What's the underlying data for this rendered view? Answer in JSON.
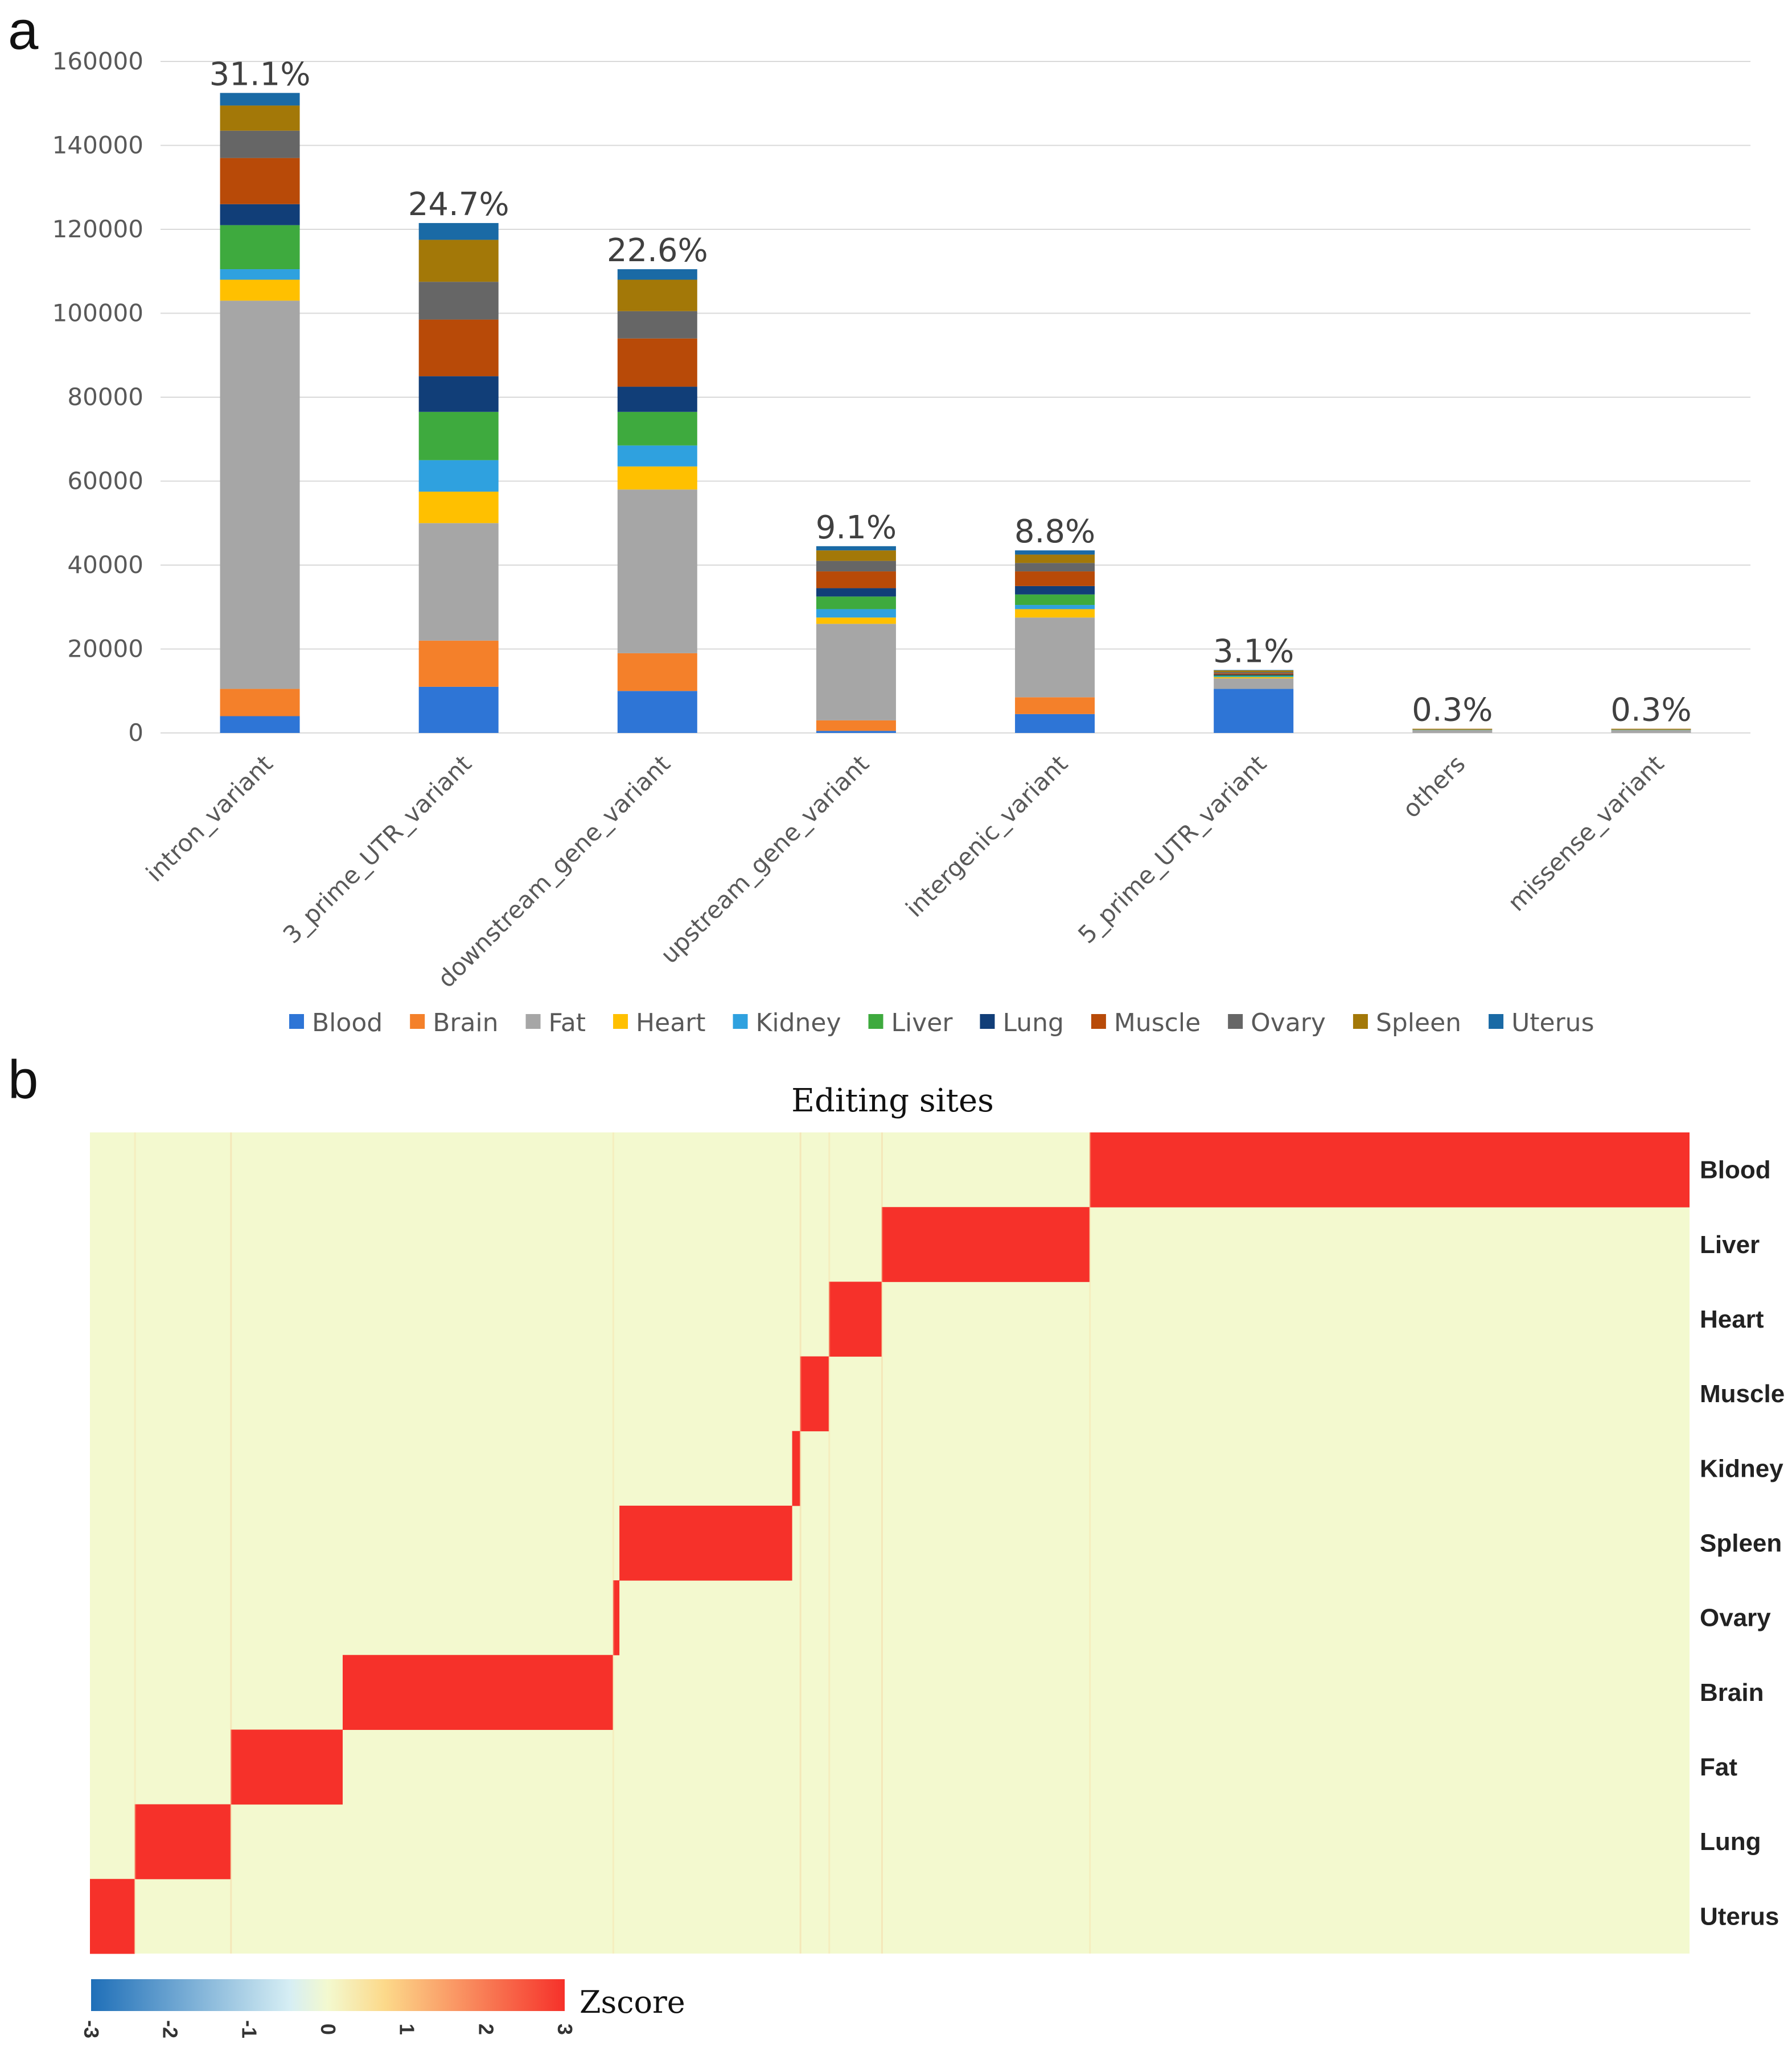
{
  "panels": {
    "a": "a",
    "b": "b"
  },
  "chart_data": [
    {
      "type": "bar",
      "stacked": true,
      "title": "",
      "xlabel": "",
      "ylabel": "",
      "ylim": [
        0,
        160000
      ],
      "y_ticks": [
        "0",
        "20000",
        "40000",
        "60000",
        "80000",
        "100000",
        "120000",
        "140000",
        "160000"
      ],
      "grid": true,
      "legend_position": "bottom",
      "categories": [
        "intron_variant",
        "3_prime_UTR_variant",
        "downstream_gene_variant",
        "upstream_gene_variant",
        "intergenic_variant",
        "5_prime_UTR_variant",
        "others",
        "missense_variant"
      ],
      "percent_labels": [
        "31.1%",
        "24.7%",
        "22.6%",
        "9.1%",
        "8.8%",
        "3.1%",
        "0.3%",
        "0.3%"
      ],
      "series": [
        {
          "name": "Blood",
          "color": "#2E75D6",
          "values": [
            4000,
            11000,
            10000,
            500,
            4500,
            10500,
            0,
            0
          ]
        },
        {
          "name": "Brain",
          "color": "#F4802A",
          "values": [
            6500,
            11000,
            9000,
            2500,
            4000,
            0,
            0,
            0
          ]
        },
        {
          "name": "Fat",
          "color": "#A6A6A6",
          "values": [
            92500,
            28000,
            39000,
            23000,
            19000,
            2500,
            700,
            700
          ]
        },
        {
          "name": "Heart",
          "color": "#FFC000",
          "values": [
            5000,
            7500,
            5500,
            1500,
            2000,
            300,
            0,
            0
          ]
        },
        {
          "name": "Kidney",
          "color": "#2FA1DF",
          "values": [
            2500,
            7500,
            5000,
            2000,
            1000,
            200,
            0,
            0
          ]
        },
        {
          "name": "Liver",
          "color": "#3EAA3E",
          "values": [
            10500,
            11500,
            8000,
            3000,
            2500,
            200,
            100,
            100
          ]
        },
        {
          "name": "Lung",
          "color": "#113E78",
          "values": [
            5000,
            8500,
            6000,
            2000,
            2000,
            200,
            0,
            0
          ]
        },
        {
          "name": "Muscle",
          "color": "#B84A08",
          "values": [
            11000,
            13500,
            11500,
            4000,
            3500,
            300,
            100,
            100
          ]
        },
        {
          "name": "Ovary",
          "color": "#666666",
          "values": [
            6500,
            9000,
            6500,
            2500,
            2000,
            300,
            0,
            0
          ]
        },
        {
          "name": "Spleen",
          "color": "#A37808",
          "values": [
            6000,
            10000,
            7500,
            2500,
            2000,
            400,
            100,
            100
          ]
        },
        {
          "name": "Uterus",
          "color": "#1A6AA5",
          "values": [
            3000,
            4000,
            2500,
            1000,
            1000,
            100,
            0,
            0
          ]
        }
      ]
    },
    {
      "type": "heatmap",
      "title": "Editing sites",
      "rows": [
        "Blood",
        "Liver",
        "Heart",
        "Muscle",
        "Kidney",
        "Spleen",
        "Ovary",
        "Brain",
        "Fat",
        "Lung",
        "Uterus"
      ],
      "column_unit": "fraction of editing sites (ordered by tissue cluster)",
      "high_blocks": [
        {
          "row": "Blood",
          "from": 0.625,
          "to": 1.0
        },
        {
          "row": "Liver",
          "from": 0.495,
          "to": 0.625
        },
        {
          "row": "Heart",
          "from": 0.462,
          "to": 0.495
        },
        {
          "row": "Muscle",
          "from": 0.444,
          "to": 0.462
        },
        {
          "row": "Kidney",
          "from": 0.439,
          "to": 0.444
        },
        {
          "row": "Spleen",
          "from": 0.331,
          "to": 0.439
        },
        {
          "row": "Ovary",
          "from": 0.327,
          "to": 0.331
        },
        {
          "row": "Brain",
          "from": 0.158,
          "to": 0.327
        },
        {
          "row": "Fat",
          "from": 0.088,
          "to": 0.158
        },
        {
          "row": "Lung",
          "from": 0.028,
          "to": 0.088
        },
        {
          "row": "Uterus",
          "from": 0.0,
          "to": 0.028
        }
      ],
      "colorbar": {
        "title": "Zscore",
        "range": [
          -3,
          3
        ],
        "ticks": [
          "-3",
          "-2",
          "-1",
          "0",
          "1",
          "2",
          "3"
        ],
        "low_color": "#1F6FB8",
        "mid_color": "#F3F9CF",
        "high_color": "#F6312A"
      }
    }
  ]
}
